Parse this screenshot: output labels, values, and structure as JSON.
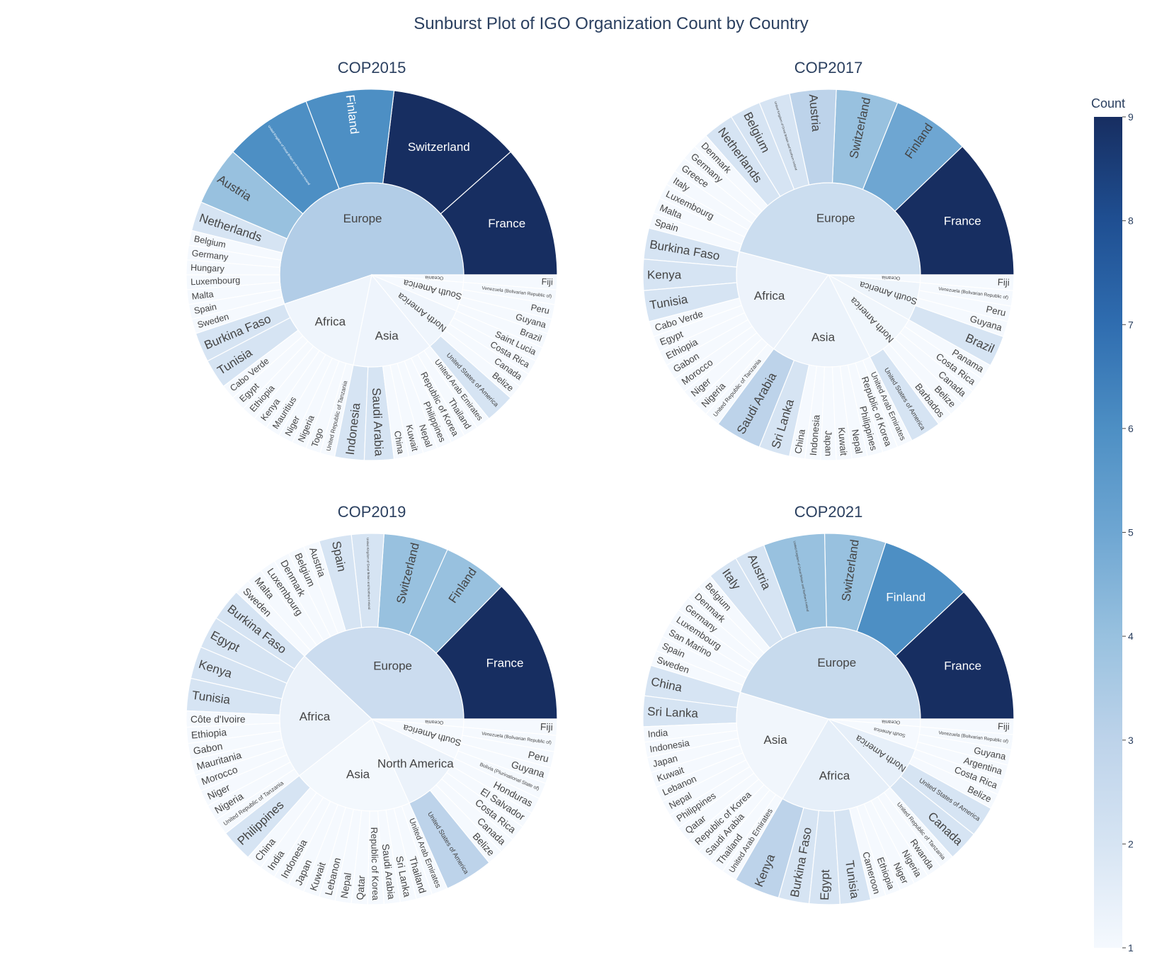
{
  "title": "Sunburst Plot of IGO Organization Count by Country",
  "colorbar": {
    "title": "Count",
    "ticks": [
      1,
      2,
      3,
      4,
      5,
      6,
      7,
      8,
      9
    ],
    "colorscale": [
      "#f7fbff",
      "#deebf7",
      "#c6dbef",
      "#9ecae1",
      "#6baed6",
      "#4292c6",
      "#2171b5",
      "#08519c",
      "#08306b"
    ],
    "display_colors": [
      "#f5f9fe",
      "#d6e4f3",
      "#bdd3ea",
      "#98c1df",
      "#6ea6d2",
      "#4d8fc4",
      "#2f6db0",
      "#1f4f92",
      "#172e61"
    ]
  },
  "chart_data": [
    {
      "type": "sunburst",
      "title": "COP2015",
      "regions": [
        {
          "name": "Europe",
          "countries": [
            {
              "name": "France",
              "value": 9
            },
            {
              "name": "Switzerland",
              "value": 9
            },
            {
              "name": "Finland",
              "value": 6
            },
            {
              "name": "United Kingdom of Great Britain and Northern Ireland",
              "value": 6
            },
            {
              "name": "Austria",
              "value": 4
            },
            {
              "name": "Netherlands",
              "value": 2
            },
            {
              "name": "Belgium",
              "value": 1
            },
            {
              "name": "Germany",
              "value": 1
            },
            {
              "name": "Hungary",
              "value": 1
            },
            {
              "name": "Luxembourg",
              "value": 1
            },
            {
              "name": "Malta",
              "value": 1
            },
            {
              "name": "Spain",
              "value": 1
            },
            {
              "name": "Sweden",
              "value": 1
            }
          ]
        },
        {
          "name": "Africa",
          "countries": [
            {
              "name": "Burkina Faso",
              "value": 2
            },
            {
              "name": "Tunisia",
              "value": 2
            },
            {
              "name": "Cabo Verde",
              "value": 1
            },
            {
              "name": "Egypt",
              "value": 1
            },
            {
              "name": "Ethiopia",
              "value": 1
            },
            {
              "name": "Kenya",
              "value": 1
            },
            {
              "name": "Mauritius",
              "value": 1
            },
            {
              "name": "Niger",
              "value": 1
            },
            {
              "name": "Nigeria",
              "value": 1
            },
            {
              "name": "Togo",
              "value": 1
            },
            {
              "name": "United Republic of Tanzania",
              "value": 1
            }
          ]
        },
        {
          "name": "Asia",
          "countries": [
            {
              "name": "Indonesia",
              "value": 2
            },
            {
              "name": "Saudi Arabia",
              "value": 2
            },
            {
              "name": "China",
              "value": 1
            },
            {
              "name": "Kuwait",
              "value": 1
            },
            {
              "name": "Nepal",
              "value": 1
            },
            {
              "name": "Philippines",
              "value": 1
            },
            {
              "name": "Republic of Korea",
              "value": 1
            },
            {
              "name": "Thailand",
              "value": 1
            },
            {
              "name": "United Arab Emirates",
              "value": 1
            }
          ]
        },
        {
          "name": "North America",
          "countries": [
            {
              "name": "United States of America",
              "value": 2
            },
            {
              "name": "Belize",
              "value": 1
            },
            {
              "name": "Canada",
              "value": 1
            },
            {
              "name": "Costa Rica",
              "value": 1
            },
            {
              "name": "Saint Lucia",
              "value": 1
            }
          ]
        },
        {
          "name": "South America",
          "countries": [
            {
              "name": "Brazil",
              "value": 1
            },
            {
              "name": "Guyana",
              "value": 1
            },
            {
              "name": "Peru",
              "value": 1
            },
            {
              "name": "Venezuela (Bolivarian Republic of)",
              "value": 1
            }
          ]
        },
        {
          "name": "Oceania",
          "countries": [
            {
              "name": "Fiji",
              "value": 1
            }
          ]
        }
      ]
    },
    {
      "type": "sunburst",
      "title": "COP2017",
      "regions": [
        {
          "name": "Europe",
          "countries": [
            {
              "name": "France",
              "value": 9
            },
            {
              "name": "Finland",
              "value": 5
            },
            {
              "name": "Switzerland",
              "value": 4
            },
            {
              "name": "Austria",
              "value": 3
            },
            {
              "name": "United Kingdom of Great Britain and Northern Ireland",
              "value": 2
            },
            {
              "name": "Belgium",
              "value": 2
            },
            {
              "name": "Netherlands",
              "value": 2
            },
            {
              "name": "Denmark",
              "value": 1
            },
            {
              "name": "Germany",
              "value": 1
            },
            {
              "name": "Greece",
              "value": 1
            },
            {
              "name": "Italy",
              "value": 1
            },
            {
              "name": "Luxembourg",
              "value": 1
            },
            {
              "name": "Malta",
              "value": 1
            },
            {
              "name": "Spain",
              "value": 1
            }
          ]
        },
        {
          "name": "Africa",
          "countries": [
            {
              "name": "Burkina Faso",
              "value": 2
            },
            {
              "name": "Kenya",
              "value": 2
            },
            {
              "name": "Tunisia",
              "value": 2
            },
            {
              "name": "Cabo Verde",
              "value": 1
            },
            {
              "name": "Egypt",
              "value": 1
            },
            {
              "name": "Ethiopia",
              "value": 1
            },
            {
              "name": "Gabon",
              "value": 1
            },
            {
              "name": "Morocco",
              "value": 1
            },
            {
              "name": "Niger",
              "value": 1
            },
            {
              "name": "Nigeria",
              "value": 1
            },
            {
              "name": "United Republic of Tanzania",
              "value": 1
            }
          ]
        },
        {
          "name": "Asia",
          "countries": [
            {
              "name": "Saudi Arabia",
              "value": 3
            },
            {
              "name": "Sri Lanka",
              "value": 2
            },
            {
              "name": "China",
              "value": 1
            },
            {
              "name": "Indonesia",
              "value": 1
            },
            {
              "name": "Japan",
              "value": 1
            },
            {
              "name": "Kuwait",
              "value": 1
            },
            {
              "name": "Nepal",
              "value": 1
            },
            {
              "name": "Philippines",
              "value": 1
            },
            {
              "name": "Republic of Korea",
              "value": 1
            },
            {
              "name": "United Arab Emirates",
              "value": 1
            }
          ]
        },
        {
          "name": "North America",
          "countries": [
            {
              "name": "United States of America",
              "value": 2
            },
            {
              "name": "Barbados",
              "value": 1
            },
            {
              "name": "Belize",
              "value": 1
            },
            {
              "name": "Canada",
              "value": 1
            },
            {
              "name": "Costa Rica",
              "value": 1
            },
            {
              "name": "Panama",
              "value": 1
            }
          ]
        },
        {
          "name": "South America",
          "countries": [
            {
              "name": "Brazil",
              "value": 2
            },
            {
              "name": "Guyana",
              "value": 1
            },
            {
              "name": "Peru",
              "value": 1
            },
            {
              "name": "Venezuela (Bolivarian Republic of)",
              "value": 1
            }
          ]
        },
        {
          "name": "Oceania",
          "countries": [
            {
              "name": "Fiji",
              "value": 1
            }
          ]
        }
      ]
    },
    {
      "type": "sunburst",
      "title": "COP2019",
      "regions": [
        {
          "name": "Europe",
          "countries": [
            {
              "name": "France",
              "value": 9
            },
            {
              "name": "Finland",
              "value": 4
            },
            {
              "name": "Switzerland",
              "value": 4
            },
            {
              "name": "United Kingdom of Great Britain and Northern Ireland",
              "value": 2
            },
            {
              "name": "Spain",
              "value": 2
            },
            {
              "name": "Austria",
              "value": 1
            },
            {
              "name": "Belgium",
              "value": 1
            },
            {
              "name": "Denmark",
              "value": 1
            },
            {
              "name": "Luxembourg",
              "value": 1
            },
            {
              "name": "Malta",
              "value": 1
            },
            {
              "name": "Sweden",
              "value": 1
            }
          ]
        },
        {
          "name": "Africa",
          "countries": [
            {
              "name": "Burkina Faso",
              "value": 2
            },
            {
              "name": "Egypt",
              "value": 2
            },
            {
              "name": "Kenya",
              "value": 2
            },
            {
              "name": "Tunisia",
              "value": 2
            },
            {
              "name": "Côte d'Ivoire",
              "value": 1
            },
            {
              "name": "Ethiopia",
              "value": 1
            },
            {
              "name": "Gabon",
              "value": 1
            },
            {
              "name": "Mauritania",
              "value": 1
            },
            {
              "name": "Morocco",
              "value": 1
            },
            {
              "name": "Niger",
              "value": 1
            },
            {
              "name": "Nigeria",
              "value": 1
            },
            {
              "name": "United Republic of Tanzania",
              "value": 1
            }
          ]
        },
        {
          "name": "Asia",
          "countries": [
            {
              "name": "Philippines",
              "value": 2
            },
            {
              "name": "China",
              "value": 1
            },
            {
              "name": "India",
              "value": 1
            },
            {
              "name": "Indonesia",
              "value": 1
            },
            {
              "name": "Japan",
              "value": 1
            },
            {
              "name": "Kuwait",
              "value": 1
            },
            {
              "name": "Lebanon",
              "value": 1
            },
            {
              "name": "Nepal",
              "value": 1
            },
            {
              "name": "Qatar",
              "value": 1
            },
            {
              "name": "Republic of Korea",
              "value": 1
            },
            {
              "name": "Saudi Arabia",
              "value": 1
            },
            {
              "name": "Sri Lanka",
              "value": 1
            },
            {
              "name": "Thailand",
              "value": 1
            },
            {
              "name": "United Arab Emirates",
              "value": 1
            }
          ]
        },
        {
          "name": "North America",
          "countries": [
            {
              "name": "United States of America",
              "value": 3
            },
            {
              "name": "Belize",
              "value": 1
            },
            {
              "name": "Canada",
              "value": 1
            },
            {
              "name": "Costa Rica",
              "value": 1
            },
            {
              "name": "El Salvador",
              "value": 1
            },
            {
              "name": "Honduras",
              "value": 1
            }
          ]
        },
        {
          "name": "South America",
          "countries": [
            {
              "name": "Bolivia (Plurinational State of)",
              "value": 1
            },
            {
              "name": "Guyana",
              "value": 1
            },
            {
              "name": "Peru",
              "value": 1
            },
            {
              "name": "Venezuela (Bolivarian Republic of)",
              "value": 1
            }
          ]
        },
        {
          "name": "Oceania",
          "countries": [
            {
              "name": "Fiji",
              "value": 1
            }
          ]
        }
      ]
    },
    {
      "type": "sunburst",
      "title": "COP2021",
      "regions": [
        {
          "name": "Europe",
          "countries": [
            {
              "name": "France",
              "value": 9
            },
            {
              "name": "Finland",
              "value": 6
            },
            {
              "name": "Switzerland",
              "value": 4
            },
            {
              "name": "United Kingdom of Great Britain and Northern Ireland",
              "value": 4
            },
            {
              "name": "Austria",
              "value": 2
            },
            {
              "name": "Italy",
              "value": 2
            },
            {
              "name": "Belgium",
              "value": 1
            },
            {
              "name": "Denmark",
              "value": 1
            },
            {
              "name": "Germany",
              "value": 1
            },
            {
              "name": "Luxembourg",
              "value": 1
            },
            {
              "name": "San Marino",
              "value": 1
            },
            {
              "name": "Spain",
              "value": 1
            },
            {
              "name": "Sweden",
              "value": 1
            }
          ]
        },
        {
          "name": "Asia",
          "countries": [
            {
              "name": "China",
              "value": 2
            },
            {
              "name": "Sri Lanka",
              "value": 2
            },
            {
              "name": "India",
              "value": 1
            },
            {
              "name": "Indonesia",
              "value": 1
            },
            {
              "name": "Japan",
              "value": 1
            },
            {
              "name": "Kuwait",
              "value": 1
            },
            {
              "name": "Lebanon",
              "value": 1
            },
            {
              "name": "Nepal",
              "value": 1
            },
            {
              "name": "Philippines",
              "value": 1
            },
            {
              "name": "Qatar",
              "value": 1
            },
            {
              "name": "Republic of Korea",
              "value": 1
            },
            {
              "name": "Saudi Arabia",
              "value": 1
            },
            {
              "name": "Thailand",
              "value": 1
            },
            {
              "name": "United Arab Emirates",
              "value": 1
            }
          ]
        },
        {
          "name": "Africa",
          "countries": [
            {
              "name": "Kenya",
              "value": 3
            },
            {
              "name": "Burkina Faso",
              "value": 2
            },
            {
              "name": "Egypt",
              "value": 2
            },
            {
              "name": "Tunisia",
              "value": 2
            },
            {
              "name": "Cameroon",
              "value": 1
            },
            {
              "name": "Ethiopia",
              "value": 1
            },
            {
              "name": "Niger",
              "value": 1
            },
            {
              "name": "Nigeria",
              "value": 1
            },
            {
              "name": "Rwanda",
              "value": 1
            },
            {
              "name": "United Republic of Tanzania",
              "value": 1
            }
          ]
        },
        {
          "name": "North America",
          "countries": [
            {
              "name": "Canada",
              "value": 2
            },
            {
              "name": "United States of America",
              "value": 2
            },
            {
              "name": "Belize",
              "value": 1
            },
            {
              "name": "Costa Rica",
              "value": 1
            }
          ]
        },
        {
          "name": "South America",
          "countries": [
            {
              "name": "Argentina",
              "value": 1
            },
            {
              "name": "Guyana",
              "value": 1
            },
            {
              "name": "Venezuela (Bolivarian Republic of)",
              "value": 1
            }
          ]
        },
        {
          "name": "Oceania",
          "countries": [
            {
              "name": "Fiji",
              "value": 1
            }
          ]
        }
      ]
    }
  ]
}
